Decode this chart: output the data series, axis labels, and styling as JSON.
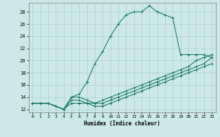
{
  "xlabel": "Humidex (Indice chaleur)",
  "xlim": [
    -0.5,
    23.5
  ],
  "ylim": [
    11.5,
    29.5
  ],
  "yticks": [
    12,
    14,
    16,
    18,
    20,
    22,
    24,
    26,
    28
  ],
  "xticks": [
    0,
    1,
    2,
    3,
    4,
    5,
    6,
    7,
    8,
    9,
    10,
    11,
    12,
    13,
    14,
    15,
    16,
    17,
    18,
    19,
    20,
    21,
    22,
    23
  ],
  "bg_color": "#cde8e8",
  "grid_color": "#aecece",
  "line_color": "#1a7a6a",
  "line1_x": [
    0,
    1,
    2,
    3,
    4,
    5,
    6,
    7,
    8,
    9,
    10,
    11,
    12,
    13,
    14,
    15,
    16,
    17,
    18,
    19,
    20,
    21,
    22,
    23
  ],
  "line1_y": [
    13,
    13,
    13,
    12.5,
    12,
    14,
    14.5,
    16.5,
    19.5,
    21.5,
    24,
    26,
    27.5,
    28,
    28,
    29,
    28,
    27.5,
    27,
    21,
    21,
    21,
    21,
    20.5
  ],
  "line2_x": [
    0,
    1,
    2,
    3,
    4,
    5,
    6,
    7,
    8,
    9,
    10,
    11,
    12,
    13,
    14,
    15,
    16,
    17,
    18,
    19,
    20,
    21,
    22,
    23
  ],
  "line2_y": [
    13,
    13,
    13,
    12.5,
    12,
    14,
    14,
    13.5,
    13,
    13.5,
    14,
    14.5,
    15,
    15.5,
    16,
    16.5,
    17,
    17.5,
    18,
    18.5,
    19,
    20,
    20.5,
    21
  ],
  "line3_x": [
    0,
    1,
    2,
    3,
    4,
    5,
    6,
    7,
    8,
    9,
    10,
    11,
    12,
    13,
    14,
    15,
    16,
    17,
    18,
    19,
    20,
    21,
    22,
    23
  ],
  "line3_y": [
    13,
    13,
    13,
    12.5,
    12,
    13.5,
    13.5,
    13,
    13,
    13,
    13.5,
    14,
    14.5,
    15,
    15.5,
    16,
    16.5,
    17,
    17.5,
    18,
    18.5,
    19,
    19.5,
    20.5
  ],
  "line4_x": [
    0,
    1,
    2,
    3,
    4,
    5,
    6,
    7,
    8,
    9,
    10,
    11,
    12,
    13,
    14,
    15,
    16,
    17,
    18,
    19,
    20,
    21,
    22,
    23
  ],
  "line4_y": [
    13,
    13,
    13,
    12.5,
    12,
    13,
    13,
    13,
    12.5,
    12.5,
    13,
    13.5,
    14,
    14.5,
    15,
    15.5,
    16,
    16.5,
    17,
    17.5,
    18,
    18.5,
    19,
    19.5
  ]
}
